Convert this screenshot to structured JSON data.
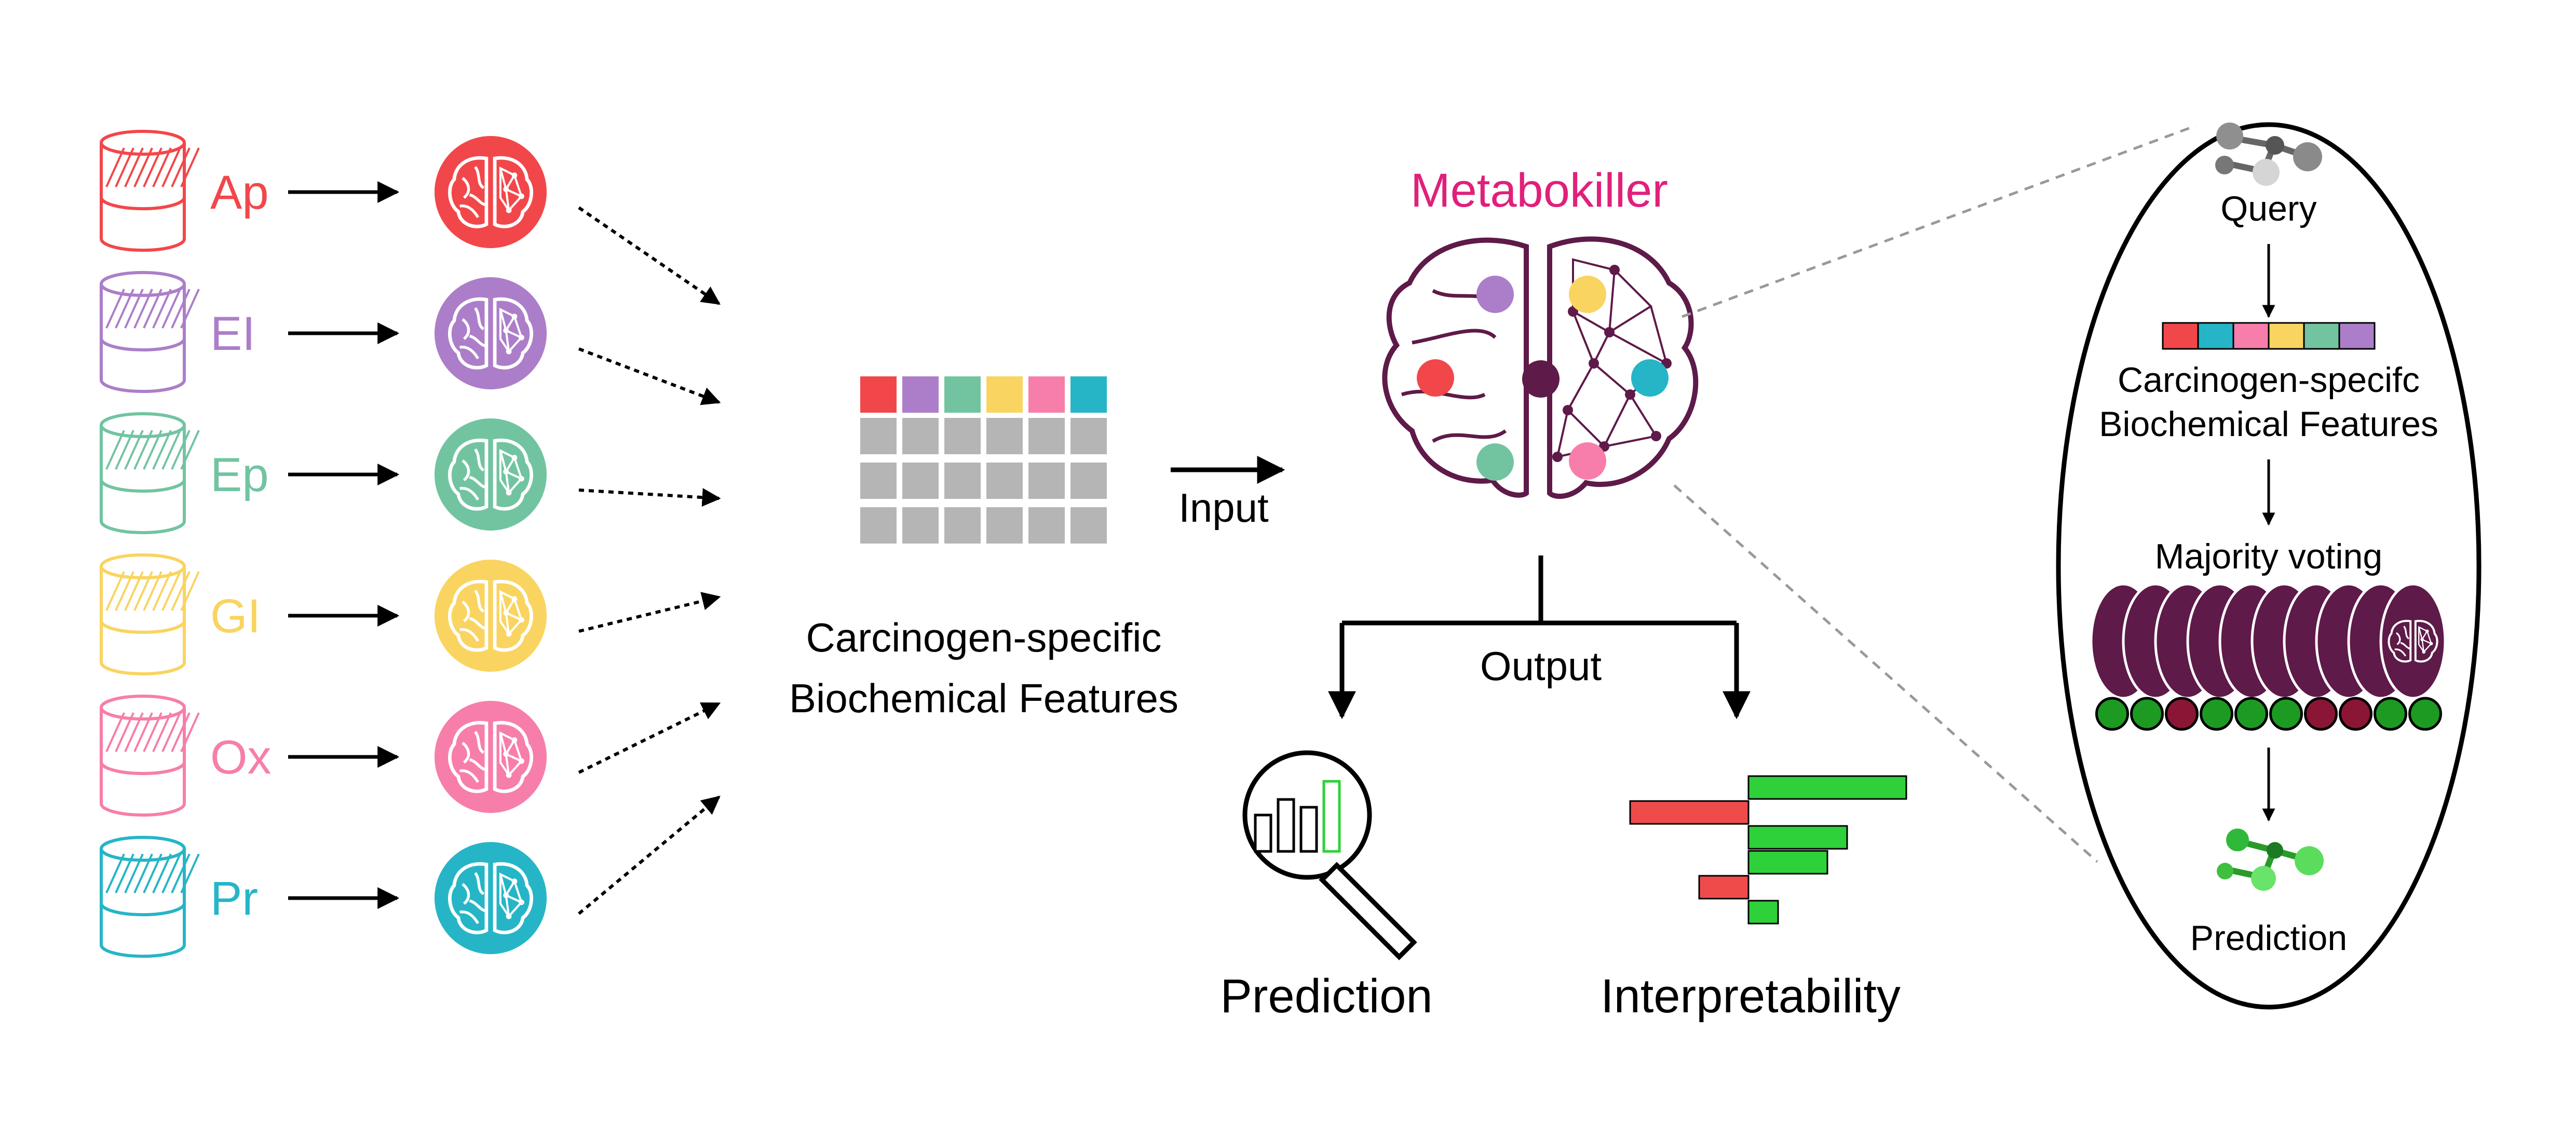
{
  "colors": {
    "ap": "#f2474a",
    "ei": "#ac7ec9",
    "ep": "#72c4a1",
    "gi": "#f9d460",
    "ox": "#f77eaa",
    "pr": "#26b5c7",
    "brain_purple": "#5e1a48",
    "metabokiller_title": "#e0207a",
    "positive": "#2fd13a",
    "negative": "#f04b4b",
    "grid_gray": "#b5b5b5",
    "dot_red": "#8a1535",
    "dot_green": "#1c9a22"
  },
  "sources": [
    {
      "label": "Ap",
      "color_key": "ap"
    },
    {
      "label": "EI",
      "color_key": "ei"
    },
    {
      "label": "Ep",
      "color_key": "ep"
    },
    {
      "label": "GI",
      "color_key": "gi"
    },
    {
      "label": "Ox",
      "color_key": "ox"
    },
    {
      "label": "Pr",
      "color_key": "pr"
    }
  ],
  "features": {
    "label_line1": "Carcinogen-specific",
    "label_line2": "Biochemical Features",
    "header_color_keys": [
      "ap",
      "ei",
      "ep",
      "gi",
      "ox",
      "pr"
    ]
  },
  "flow": {
    "input_label": "Input",
    "output_label": "Output"
  },
  "model": {
    "title": "Metabokiller"
  },
  "outputs": {
    "prediction_label": "Prediction",
    "interpretability_label": "Interpretability",
    "interpretability_bars": [
      {
        "sign": "positive",
        "value": 0.8
      },
      {
        "sign": "negative",
        "value": 0.6
      },
      {
        "sign": "positive",
        "value": 0.5
      },
      {
        "sign": "positive",
        "value": 0.4
      },
      {
        "sign": "negative",
        "value": 0.25
      },
      {
        "sign": "positive",
        "value": 0.15
      }
    ]
  },
  "workflow": {
    "query_label": "Query",
    "features_line1": "Carcinogen-specifc",
    "features_line2": "Biochemical Features",
    "feature_color_keys": [
      "ap",
      "pr",
      "ox",
      "gi",
      "ep",
      "ei"
    ],
    "voting_label": "Majority voting",
    "votes": [
      "positive",
      "positive",
      "negative",
      "positive",
      "positive",
      "positive",
      "negative",
      "negative",
      "positive",
      "positive"
    ],
    "prediction_label": "Prediction"
  }
}
